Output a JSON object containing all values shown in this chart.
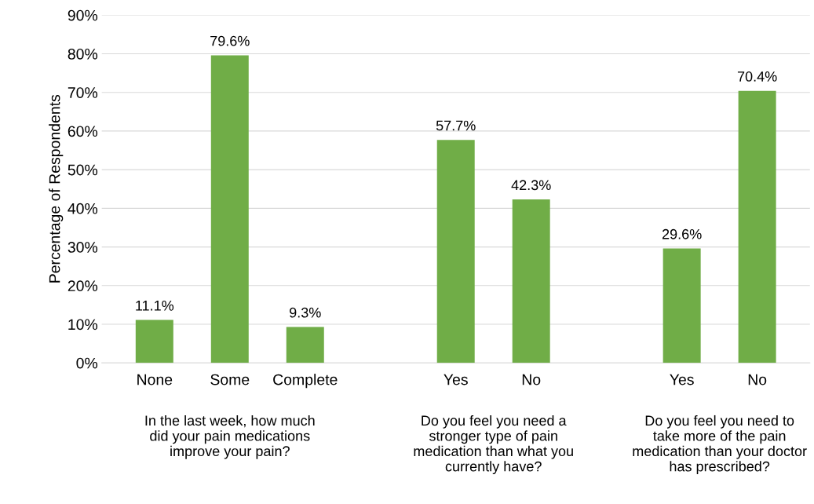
{
  "chart_data": {
    "type": "bar",
    "ylabel": "Percentage of Respondents",
    "categories": [
      "None",
      "Some",
      "Complete",
      null,
      "Yes",
      "No",
      null,
      "Yes",
      "No"
    ],
    "values": [
      11.1,
      79.6,
      9.3,
      null,
      57.7,
      42.3,
      null,
      29.6,
      70.4
    ],
    "value_labels": [
      "11.1%",
      "79.6%",
      "9.3%",
      null,
      "57.7%",
      "42.3%",
      null,
      "29.6%",
      "70.4%"
    ],
    "color": "#70ad47",
    "ylim": [
      0,
      90
    ],
    "yticks": [
      {
        "value": 0,
        "label": "0%"
      },
      {
        "value": 10,
        "label": "10%"
      },
      {
        "value": 20,
        "label": "20%"
      },
      {
        "value": 30,
        "label": "30%"
      },
      {
        "value": 40,
        "label": "40%"
      },
      {
        "value": 50,
        "label": "50%"
      },
      {
        "value": 60,
        "label": "60%"
      },
      {
        "value": 70,
        "label": "70%"
      },
      {
        "value": 80,
        "label": "80%"
      },
      {
        "value": 90,
        "label": "90%"
      }
    ],
    "grid": "y",
    "annotations": [
      "In the last week, how much\ndid your pain medications\nimprove your pain?",
      "Do you feel you need a\nstronger type of pain\nmedication than what you\ncurrently have?",
      "Do you feel you need to\ntake more of the pain\nmedication than your doctor\nhas prescribed?"
    ]
  }
}
